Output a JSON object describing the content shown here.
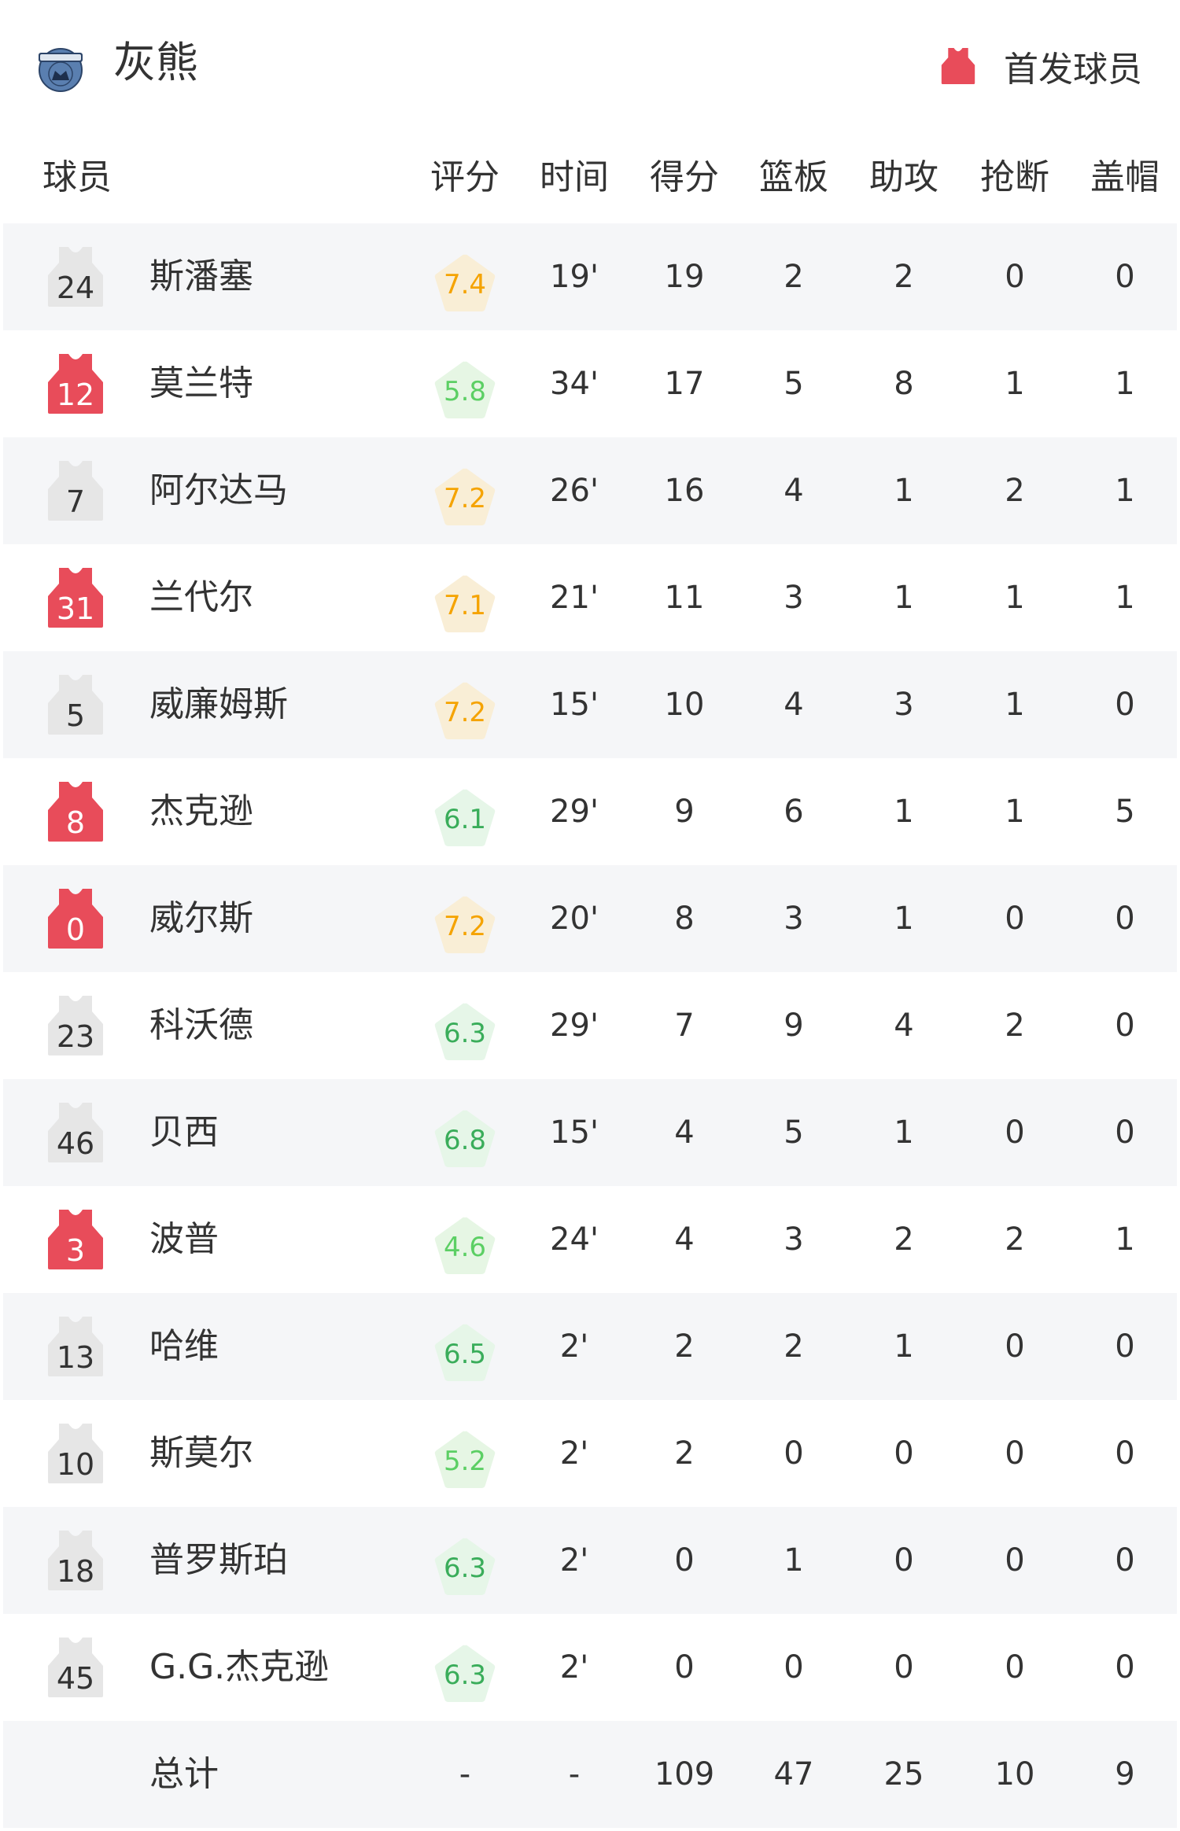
{
  "header": {
    "team_name": "灰熊",
    "logo_text": "GRIZZLIES",
    "legend_label": "首发球员",
    "starter_color": "#e84c5a",
    "bench_color": "#e6e6e6"
  },
  "columns": {
    "player": "球员",
    "rating": "评分",
    "time": "时间",
    "points": "得分",
    "rebounds": "篮板",
    "assists": "助攻",
    "steals": "抢断",
    "blocks": "盖帽"
  },
  "players": [
    {
      "number": "24",
      "starter": false,
      "name": "斯潘塞",
      "rating": "7.4",
      "time": "19'",
      "points": "19",
      "rebounds": "2",
      "assists": "2",
      "steals": "0",
      "blocks": "0"
    },
    {
      "number": "12",
      "starter": true,
      "name": "莫兰特",
      "rating": "5.8",
      "time": "34'",
      "points": "17",
      "rebounds": "5",
      "assists": "8",
      "steals": "1",
      "blocks": "1"
    },
    {
      "number": "7",
      "starter": false,
      "name": "阿尔达马",
      "rating": "7.2",
      "time": "26'",
      "points": "16",
      "rebounds": "4",
      "assists": "1",
      "steals": "2",
      "blocks": "1"
    },
    {
      "number": "31",
      "starter": true,
      "name": "兰代尔",
      "rating": "7.1",
      "time": "21'",
      "points": "11",
      "rebounds": "3",
      "assists": "1",
      "steals": "1",
      "blocks": "1"
    },
    {
      "number": "5",
      "starter": false,
      "name": "威廉姆斯",
      "rating": "7.2",
      "time": "15'",
      "points": "10",
      "rebounds": "4",
      "assists": "3",
      "steals": "1",
      "blocks": "0"
    },
    {
      "number": "8",
      "starter": true,
      "name": "杰克逊",
      "rating": "6.1",
      "time": "29'",
      "points": "9",
      "rebounds": "6",
      "assists": "1",
      "steals": "1",
      "blocks": "5"
    },
    {
      "number": "0",
      "starter": true,
      "name": "威尔斯",
      "rating": "7.2",
      "time": "20'",
      "points": "8",
      "rebounds": "3",
      "assists": "1",
      "steals": "0",
      "blocks": "0"
    },
    {
      "number": "23",
      "starter": false,
      "name": "科沃德",
      "rating": "6.3",
      "time": "29'",
      "points": "7",
      "rebounds": "9",
      "assists": "4",
      "steals": "2",
      "blocks": "0"
    },
    {
      "number": "46",
      "starter": false,
      "name": "贝西",
      "rating": "6.8",
      "time": "15'",
      "points": "4",
      "rebounds": "5",
      "assists": "1",
      "steals": "0",
      "blocks": "0"
    },
    {
      "number": "3",
      "starter": true,
      "name": "波普",
      "rating": "4.6",
      "time": "24'",
      "points": "4",
      "rebounds": "3",
      "assists": "2",
      "steals": "2",
      "blocks": "1"
    },
    {
      "number": "13",
      "starter": false,
      "name": "哈维",
      "rating": "6.5",
      "time": "2'",
      "points": "2",
      "rebounds": "2",
      "assists": "1",
      "steals": "0",
      "blocks": "0"
    },
    {
      "number": "10",
      "starter": false,
      "name": "斯莫尔",
      "rating": "5.2",
      "time": "2'",
      "points": "2",
      "rebounds": "0",
      "assists": "0",
      "steals": "0",
      "blocks": "0"
    },
    {
      "number": "18",
      "starter": false,
      "name": "普罗斯珀",
      "rating": "6.3",
      "time": "2'",
      "points": "0",
      "rebounds": "1",
      "assists": "0",
      "steals": "0",
      "blocks": "0"
    },
    {
      "number": "45",
      "starter": false,
      "name": "G.G.杰克逊",
      "rating": "6.3",
      "time": "2'",
      "points": "0",
      "rebounds": "0",
      "assists": "0",
      "steals": "0",
      "blocks": "0"
    }
  ],
  "totals": {
    "label": "总计",
    "rating": "-",
    "time": "-",
    "points": "109",
    "rebounds": "47",
    "assists": "25",
    "steals": "10",
    "blocks": "9"
  },
  "rating_colors": {
    "high_text": "#f5a300",
    "high_bg": "#f9eed6",
    "mid_text": "#3aad5a",
    "mid_bg": "#e6f6e8",
    "low_text": "#5ccf64",
    "low_bg": "#e6f6e4"
  }
}
